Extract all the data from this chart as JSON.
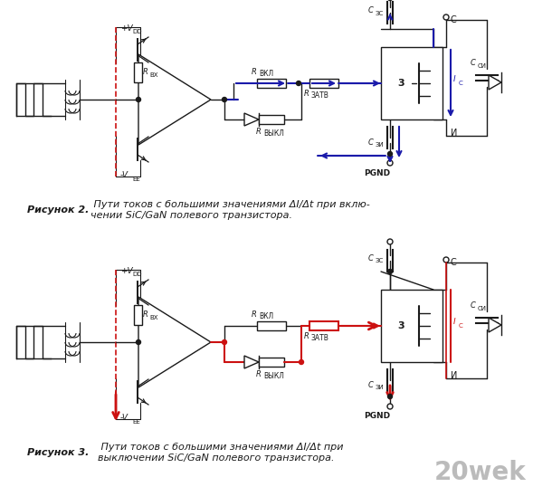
{
  "bg_color": "#ffffff",
  "fig_width": 6.1,
  "fig_height": 5.38,
  "dpi": 100,
  "caption1_bold": "Рисунок 2.",
  "caption1_italic": " Пути токов с большими значениями ΔI/Δt при вклю-\nчении SiC/GaN полевого транзистора.",
  "caption2_bold": "Рисунок 3.",
  "caption2_italic": " Пути токов с большими значениями ΔI/Δt при\nвыключении SiC/GaN полевого транзистора.",
  "watermark": "20wek",
  "blue": "#1a1aaa",
  "red": "#cc1111",
  "black": "#1a1a1a",
  "dashed_red": "#cc1111",
  "white": "#ffffff",
  "gray": "#888888"
}
